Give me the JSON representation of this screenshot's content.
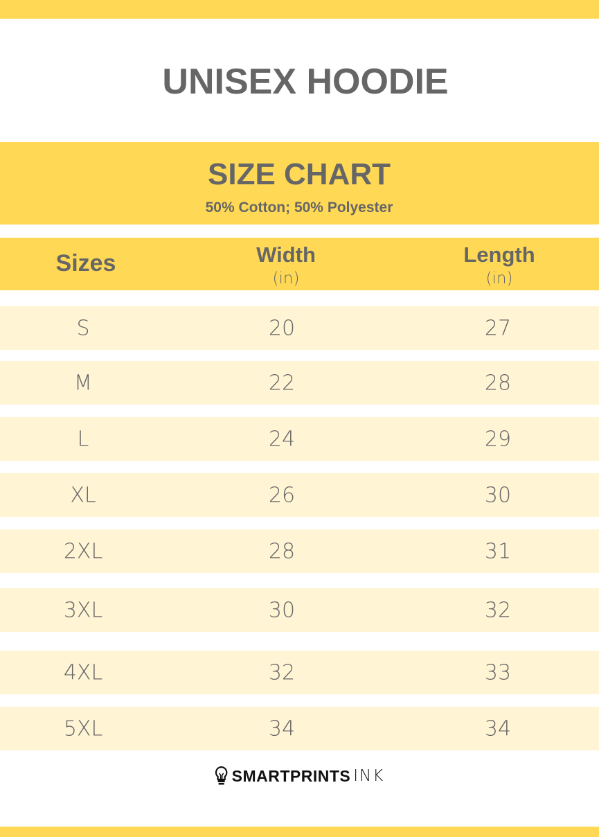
{
  "colors": {
    "accent": "#FFD955",
    "row": "#FFF4D4",
    "text": "#666666"
  },
  "title": "UNISEX HOODIE",
  "banner": {
    "title": "SIZE CHART",
    "subtitle": "50% Cotton; 50% Polyester"
  },
  "header": {
    "sizes": "Sizes",
    "width": "Width",
    "width_unit": "(in)",
    "length": "Length",
    "length_unit": "(in)"
  },
  "rows": [
    {
      "size": "S",
      "width": "20",
      "length": "27"
    },
    {
      "size": "M",
      "width": "22",
      "length": "28"
    },
    {
      "size": "L",
      "width": "24",
      "length": "29"
    },
    {
      "size": "XL",
      "width": "26",
      "length": "30"
    },
    {
      "size": "2XL",
      "width": "28",
      "length": "31"
    },
    {
      "size": "3XL",
      "width": "30",
      "length": "32"
    },
    {
      "size": "4XL",
      "width": "32",
      "length": "33"
    },
    {
      "size": "5XL",
      "width": "34",
      "length": "34"
    }
  ],
  "logo": {
    "bold": "SMARTPRINTS",
    "light": "INK",
    "icon": "lightbulb-icon"
  }
}
